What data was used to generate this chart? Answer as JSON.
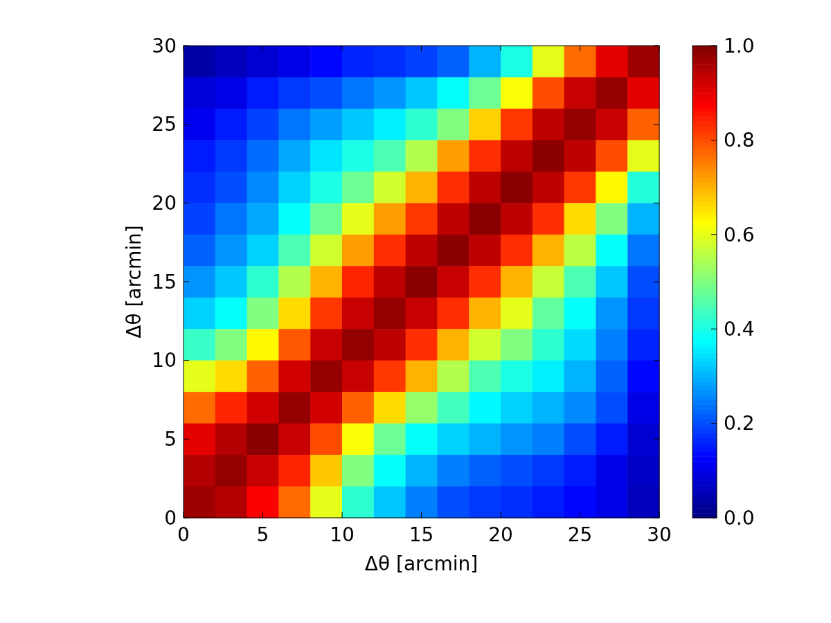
{
  "chart_data": {
    "type": "heatmap",
    "xlabel": "Δθ [arcmin]",
    "ylabel": "Δθ [arcmin]",
    "x": [
      1,
      3,
      5,
      7,
      9,
      11,
      13,
      15,
      17,
      19,
      21,
      23,
      25,
      27,
      29
    ],
    "xlim": [
      0,
      30
    ],
    "xticks": [
      0,
      5,
      10,
      15,
      20,
      25,
      30
    ],
    "ylim": [
      0,
      30
    ],
    "yticks": [
      0,
      5,
      10,
      15,
      20,
      25,
      30
    ],
    "clim": [
      0,
      1
    ],
    "cticks": [
      {
        "value": 0,
        "label": "0.0"
      },
      0.2,
      0.4,
      0.6,
      0.8,
      {
        "value": 1,
        "label": "1.0"
      }
    ],
    "cells": [
      [
        0.04,
        0.06,
        0.08,
        0.1,
        0.13,
        0.16,
        0.17,
        0.19,
        0.22,
        0.3,
        0.4,
        0.6,
        0.77,
        0.9,
        0.97
      ],
      [
        0.09,
        0.1,
        0.15,
        0.18,
        0.2,
        0.24,
        0.27,
        0.32,
        0.38,
        0.48,
        0.62,
        0.8,
        0.93,
        0.98,
        0.9
      ],
      [
        0.11,
        0.15,
        0.19,
        0.24,
        0.28,
        0.32,
        0.36,
        0.42,
        0.5,
        0.67,
        0.82,
        0.94,
        0.98,
        0.93,
        0.78
      ],
      [
        0.15,
        0.18,
        0.23,
        0.29,
        0.35,
        0.4,
        0.45,
        0.55,
        0.72,
        0.83,
        0.94,
        0.99,
        0.94,
        0.8,
        0.6
      ],
      [
        0.17,
        0.2,
        0.26,
        0.33,
        0.4,
        0.48,
        0.58,
        0.7,
        0.83,
        0.94,
        0.99,
        0.94,
        0.82,
        0.63,
        0.41
      ],
      [
        0.19,
        0.24,
        0.29,
        0.38,
        0.48,
        0.6,
        0.72,
        0.82,
        0.94,
        0.99,
        0.94,
        0.83,
        0.66,
        0.5,
        0.3
      ],
      [
        0.22,
        0.27,
        0.33,
        0.45,
        0.58,
        0.72,
        0.83,
        0.94,
        0.99,
        0.94,
        0.83,
        0.7,
        0.56,
        0.38,
        0.24
      ],
      [
        0.27,
        0.32,
        0.42,
        0.55,
        0.7,
        0.84,
        0.94,
        0.99,
        0.93,
        0.83,
        0.7,
        0.57,
        0.45,
        0.32,
        0.2
      ],
      [
        0.33,
        0.38,
        0.5,
        0.66,
        0.82,
        0.93,
        0.98,
        0.93,
        0.83,
        0.7,
        0.6,
        0.47,
        0.38,
        0.27,
        0.18
      ],
      [
        0.43,
        0.5,
        0.63,
        0.79,
        0.93,
        0.98,
        0.94,
        0.83,
        0.7,
        0.58,
        0.5,
        0.42,
        0.34,
        0.25,
        0.16
      ],
      [
        0.6,
        0.66,
        0.78,
        0.92,
        0.98,
        0.93,
        0.82,
        0.7,
        0.55,
        0.45,
        0.4,
        0.36,
        0.3,
        0.22,
        0.13
      ],
      [
        0.77,
        0.84,
        0.92,
        0.98,
        0.92,
        0.78,
        0.66,
        0.52,
        0.44,
        0.37,
        0.33,
        0.3,
        0.26,
        0.2,
        0.1
      ],
      [
        0.9,
        0.95,
        0.99,
        0.93,
        0.8,
        0.62,
        0.48,
        0.38,
        0.33,
        0.3,
        0.27,
        0.25,
        0.2,
        0.15,
        0.08
      ],
      [
        0.95,
        0.98,
        0.93,
        0.84,
        0.68,
        0.5,
        0.38,
        0.3,
        0.25,
        0.22,
        0.2,
        0.18,
        0.15,
        0.1,
        0.07
      ],
      [
        0.97,
        0.95,
        0.88,
        0.77,
        0.6,
        0.42,
        0.32,
        0.25,
        0.2,
        0.18,
        0.17,
        0.15,
        0.13,
        0.1,
        0.06
      ]
    ]
  }
}
